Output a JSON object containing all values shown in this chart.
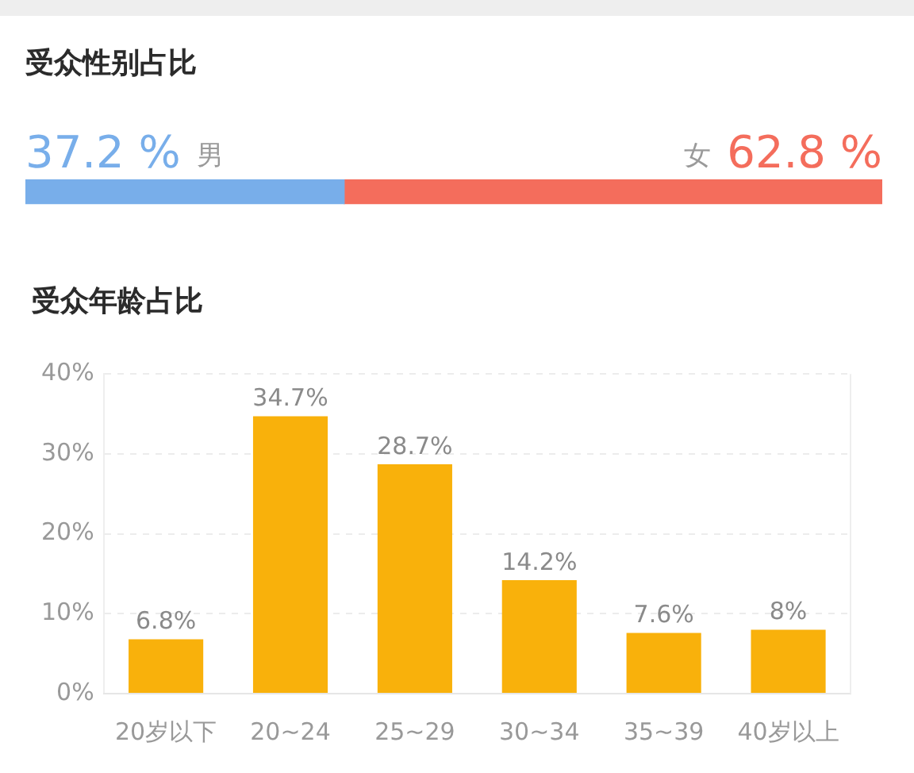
{
  "chart_data": [
    {
      "type": "bar",
      "title": "受众性别占比",
      "orientation": "horizontal",
      "stacked": true,
      "categories": [
        null
      ],
      "legend": false,
      "series": [
        {
          "name": "男",
          "color": "#78aeea",
          "values": [
            37.2
          ],
          "value_labels": [
            "37.2 %"
          ]
        },
        {
          "name": "女",
          "color": "#f46d5c",
          "values": [
            62.8
          ],
          "value_labels": [
            "62.8 %"
          ]
        }
      ]
    },
    {
      "type": "bar",
      "title": "受众年龄占比",
      "categories": [
        "20岁以下",
        "20~24",
        "25~29",
        "30~34",
        "35~39",
        "40岁以上"
      ],
      "values": [
        6.8,
        34.7,
        28.7,
        14.2,
        7.6,
        8
      ],
      "value_labels": [
        "6.8%",
        "34.7%",
        "28.7%",
        "14.2%",
        "7.6%",
        "8%"
      ],
      "color": "#f9b10b",
      "ylim": [
        0,
        40
      ],
      "yticks": [
        {
          "value": 0,
          "label": "0%"
        },
        {
          "value": 10,
          "label": "10%"
        },
        {
          "value": 20,
          "label": "20%"
        },
        {
          "value": 30,
          "label": "30%"
        },
        {
          "value": 40,
          "label": "40%"
        }
      ],
      "grid": "y",
      "legend": false
    }
  ]
}
